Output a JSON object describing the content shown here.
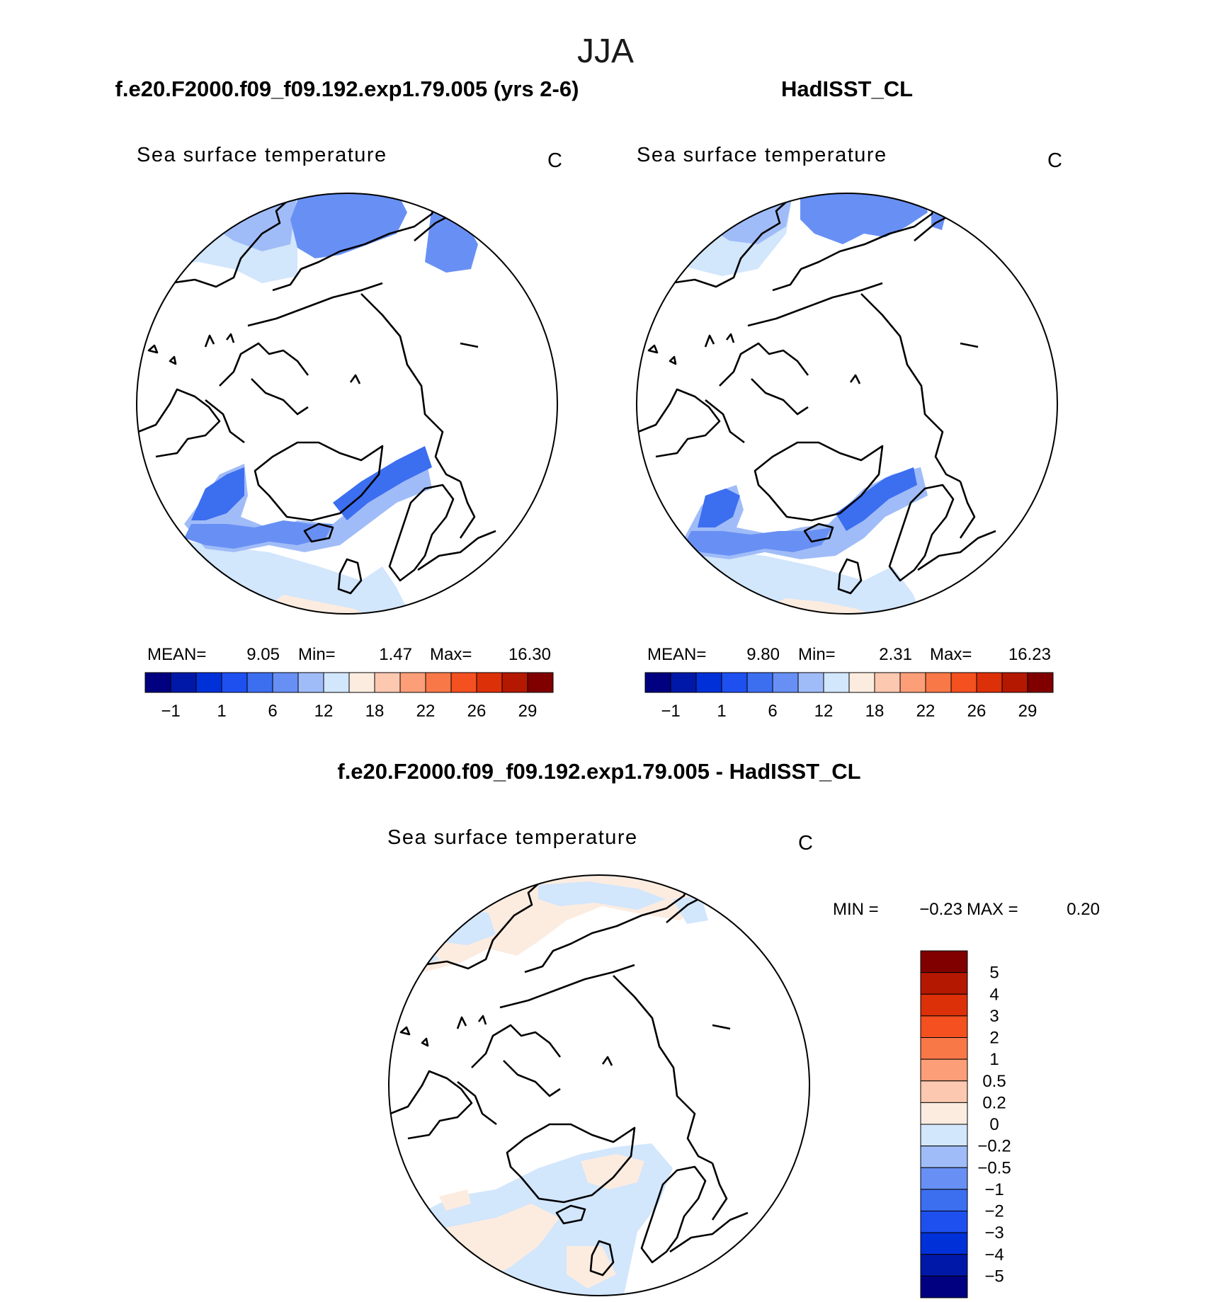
{
  "season_title": "JJA",
  "colors": {
    "land_outline": "#000000",
    "ocean_cold": [
      "#000080",
      "#0018a8",
      "#0030d8",
      "#1e50f0",
      "#3c6ef0",
      "#6890f4",
      "#a0bcf8",
      "#d2e6fc"
    ],
    "ocean_warm": [
      "#fcece0",
      "#fcc8b0",
      "#fc9e78",
      "#f87848",
      "#f45020",
      "#dc3008",
      "#b41800",
      "#800000"
    ]
  },
  "panels": {
    "model": {
      "header": "f.e20.F2000.f09_f09.192.exp1.79.005 (yrs 2-6)",
      "variable": "Sea surface temperature",
      "units": "C",
      "mean_label": "MEAN=",
      "mean": "9.05",
      "min_label": "Min=",
      "min": "1.47",
      "max_label": "Max=",
      "max": "16.30"
    },
    "obs": {
      "header": "HadISST_CL",
      "variable": "Sea surface temperature",
      "units": "C",
      "mean_label": "MEAN=",
      "mean": "9.80",
      "min_label": "Min=",
      "min": "2.31",
      "max_label": "Max=",
      "max": "16.23"
    },
    "diff": {
      "header": "f.e20.F2000.f09_f09.192.exp1.79.005 - HadISST_CL",
      "variable": "Sea surface temperature",
      "units": "C",
      "min_label": "MIN =",
      "min": "−0.23",
      "max_label": "MAX =",
      "max": "0.20"
    }
  },
  "chart_data": [
    {
      "type": "heatmap",
      "projection": "north-polar-stereographic",
      "title": "Sea surface temperature",
      "units": "C",
      "stats": {
        "mean": 9.05,
        "min": 1.47,
        "max": 16.3
      },
      "colorbar": {
        "orientation": "horizontal",
        "levels": [
          -1,
          1,
          6,
          12,
          18,
          22,
          26,
          29
        ],
        "level_labels": [
          "−1",
          "1",
          "6",
          "12",
          "18",
          "22",
          "26",
          "29"
        ],
        "colors": [
          "#000080",
          "#0018a8",
          "#0030d8",
          "#1e50f0",
          "#3c6ef0",
          "#6890f4",
          "#a0bcf8",
          "#d2e6fc",
          "#fcece0",
          "#fcc8b0",
          "#fc9e78",
          "#f87848",
          "#f45020",
          "#dc3008",
          "#b41800",
          "#800000"
        ]
      }
    },
    {
      "type": "heatmap",
      "projection": "north-polar-stereographic",
      "title": "Sea surface temperature",
      "units": "C",
      "stats": {
        "mean": 9.8,
        "min": 2.31,
        "max": 16.23
      },
      "colorbar": {
        "orientation": "horizontal",
        "levels": [
          -1,
          1,
          6,
          12,
          18,
          22,
          26,
          29
        ],
        "level_labels": [
          "−1",
          "1",
          "6",
          "12",
          "18",
          "22",
          "26",
          "29"
        ],
        "colors": [
          "#000080",
          "#0018a8",
          "#0030d8",
          "#1e50f0",
          "#3c6ef0",
          "#6890f4",
          "#a0bcf8",
          "#d2e6fc",
          "#fcece0",
          "#fcc8b0",
          "#fc9e78",
          "#f87848",
          "#f45020",
          "#dc3008",
          "#b41800",
          "#800000"
        ]
      }
    },
    {
      "type": "heatmap",
      "projection": "north-polar-stereographic",
      "title": "Sea surface temperature",
      "units": "C",
      "stats": {
        "min": -0.23,
        "max": 0.2
      },
      "colorbar": {
        "orientation": "vertical",
        "level_labels": [
          "5",
          "4",
          "3",
          "2",
          "1",
          "0.5",
          "0.2",
          "0",
          "−0.2",
          "−0.5",
          "−1",
          "−2",
          "−3",
          "−4",
          "−5"
        ],
        "colors": [
          "#800000",
          "#b41800",
          "#dc3008",
          "#f45020",
          "#f87848",
          "#fc9e78",
          "#fcc8b0",
          "#fcece0",
          "#d2e6fc",
          "#a0bcf8",
          "#6890f4",
          "#3c6ef0",
          "#1e50f0",
          "#0030d8",
          "#0018a8",
          "#000080"
        ]
      }
    }
  ]
}
